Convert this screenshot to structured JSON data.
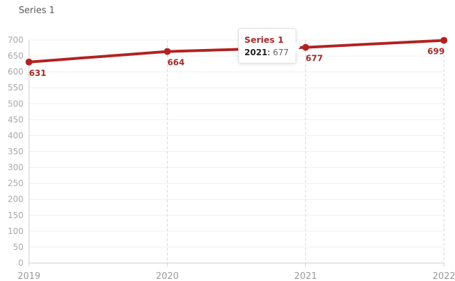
{
  "chart_data": {
    "type": "line",
    "title": "Series 1",
    "categories": [
      "2019",
      "2020",
      "2021",
      "2022"
    ],
    "series": [
      {
        "name": "Series 1",
        "values": [
          631,
          664,
          677,
          699
        ],
        "color": "#b22222"
      }
    ],
    "ylim": [
      0,
      700
    ],
    "yticks": [
      0,
      50,
      100,
      150,
      200,
      250,
      300,
      350,
      400,
      450,
      500,
      550,
      600,
      650,
      700
    ],
    "xlabel": "",
    "ylabel": "",
    "grid": {
      "horizontal": true,
      "vertical_dashed": true
    },
    "data_labels": true,
    "tooltip": {
      "series": "Series 1",
      "category": "2021",
      "value": "677"
    }
  }
}
